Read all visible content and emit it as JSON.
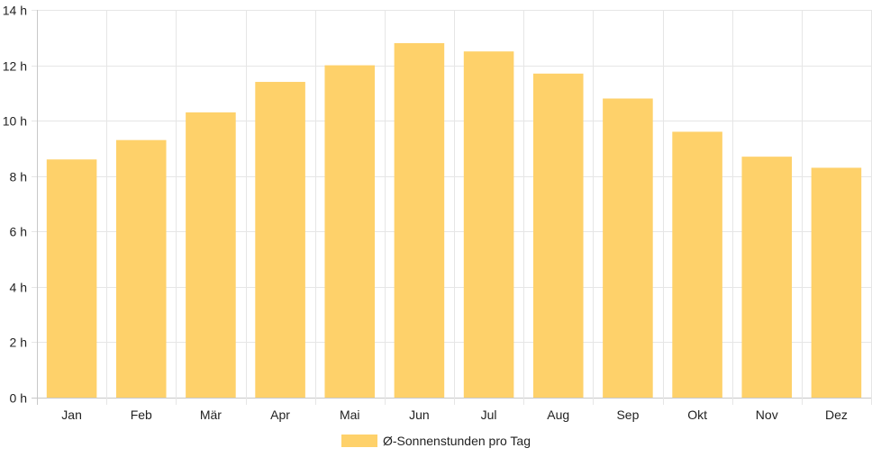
{
  "chart_data": {
    "type": "bar",
    "categories": [
      "Jan",
      "Feb",
      "Mär",
      "Apr",
      "Mai",
      "Jun",
      "Jul",
      "Aug",
      "Sep",
      "Okt",
      "Nov",
      "Dez"
    ],
    "series": [
      {
        "name": "Ø-Sonnenstunden pro Tag",
        "values": [
          8.6,
          9.3,
          10.3,
          11.4,
          12.0,
          12.8,
          12.5,
          11.7,
          10.8,
          9.6,
          8.7,
          8.3
        ]
      }
    ],
    "ylim": [
      0,
      14
    ],
    "yticks": [
      "0 h",
      "2 h",
      "4 h",
      "6 h",
      "8 h",
      "10 h",
      "12 h",
      "14 h"
    ],
    "grid": true,
    "legend_position": "bottom",
    "colors": {
      "bar": "#fed16a",
      "grid": "#e6e6e6",
      "axis": "#c8c8c8"
    }
  }
}
